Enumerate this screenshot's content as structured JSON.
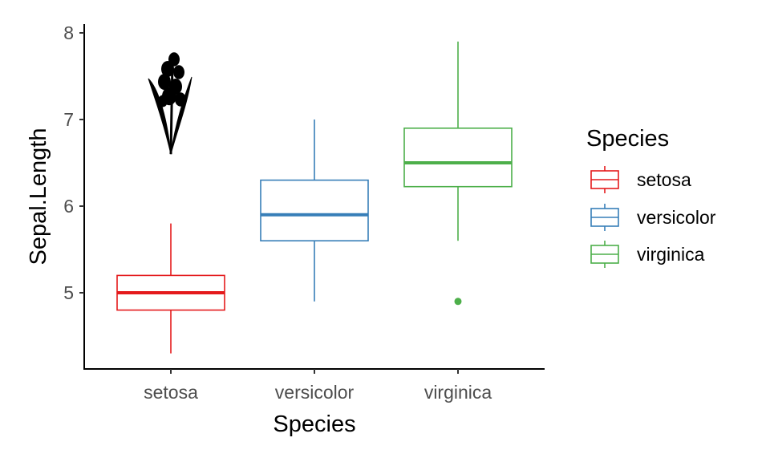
{
  "chart_data": {
    "type": "boxplot",
    "title": "",
    "xlabel": "Species",
    "ylabel": "Sepal.Length",
    "ylim": [
      4.2,
      8.1
    ],
    "yticks": [
      5,
      6,
      7,
      8
    ],
    "grid": false,
    "legend": {
      "title": "Species",
      "placement": "right",
      "entries": [
        "setosa",
        "versicolor",
        "virginica"
      ]
    },
    "categories": [
      "setosa",
      "versicolor",
      "virginica"
    ],
    "colors": {
      "setosa": "#E41A1C",
      "versicolor": "#377EB8",
      "virginica": "#4DAF4A"
    },
    "boxes": [
      {
        "category": "setosa",
        "min": 4.3,
        "q1": 4.8,
        "median": 5.0,
        "q3": 5.2,
        "max": 5.8,
        "outliers": []
      },
      {
        "category": "versicolor",
        "min": 4.9,
        "q1": 5.6,
        "median": 5.9,
        "q3": 6.3,
        "max": 7.0,
        "outliers": []
      },
      {
        "category": "virginica",
        "min": 5.6,
        "q1": 6.225,
        "median": 6.5,
        "q3": 6.9,
        "max": 7.9,
        "outliers": [
          4.9
        ]
      }
    ],
    "annotation_image": {
      "icon": "iris-flower-icon",
      "category": "setosa",
      "y_from": 6.6,
      "y_to": 7.75,
      "color": "#000000"
    }
  }
}
